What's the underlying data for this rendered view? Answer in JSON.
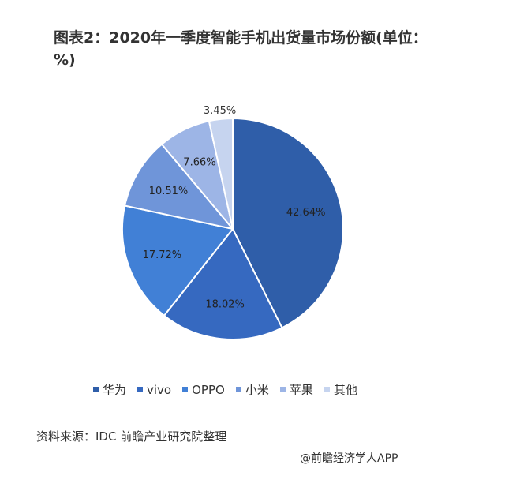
{
  "chart_data": {
    "type": "pie",
    "title": "图表2：2020年一季度智能手机出货量市场份额(单位：%)",
    "categories": [
      "华为",
      "vivo",
      "OPPO",
      "小米",
      "苹果",
      "其他"
    ],
    "values": [
      42.64,
      18.02,
      17.72,
      10.51,
      7.66,
      3.45
    ],
    "labels": [
      "42.64%",
      "18.02%",
      "17.72%",
      "10.51%",
      "7.66%",
      "3.45%"
    ],
    "colors": [
      "#2f5ea9",
      "#3669c0",
      "#4180d6",
      "#6f95d9",
      "#9db5e6",
      "#c6d4ef"
    ],
    "legend_position": "bottom"
  },
  "source": "资料来源：IDC 前瞻产业研究院整理",
  "footer": "@前瞻经济学人APP"
}
